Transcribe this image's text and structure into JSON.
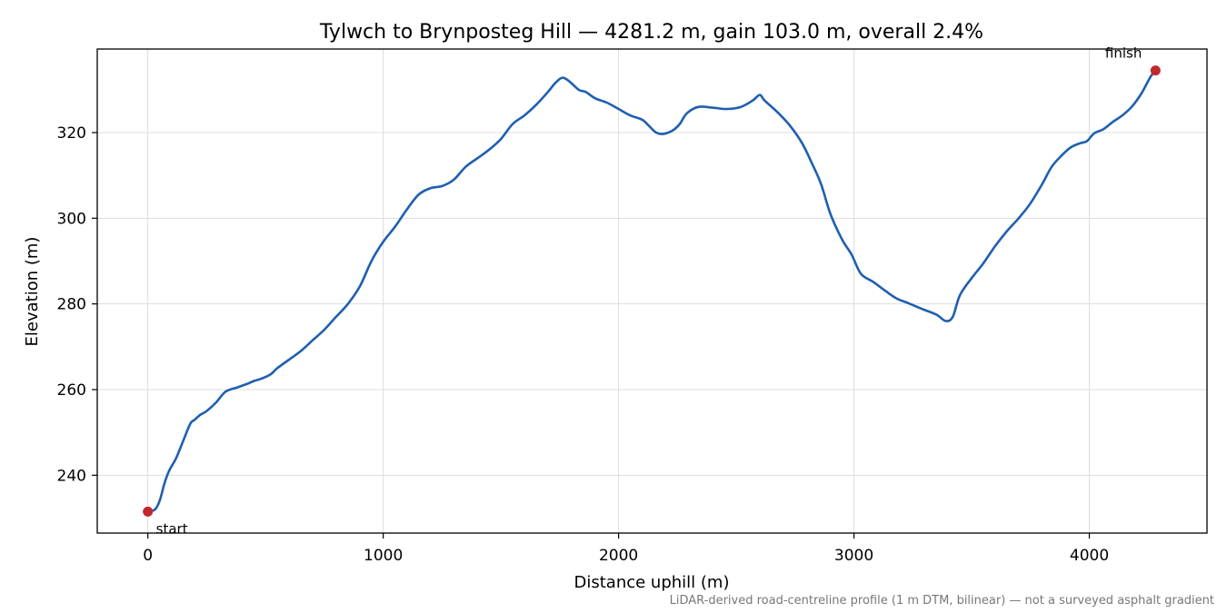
{
  "chart_data": {
    "type": "line",
    "title": "Tylwch to Brynposteg Hill — 4281.2 m, gain 103.0 m, overall 2.4%",
    "xlabel": "Distance uphill (m)",
    "ylabel": "Elevation (m)",
    "xlim": [
      -215,
      4500
    ],
    "ylim": [
      226.5,
      339.5
    ],
    "x_ticks": [
      0,
      1000,
      2000,
      3000,
      4000
    ],
    "y_ticks": [
      240,
      260,
      280,
      300,
      320
    ],
    "grid": true,
    "series": [
      {
        "color": "#1f5fb0",
        "points": [
          [
            0,
            231.5
          ],
          [
            30,
            232
          ],
          [
            50,
            234
          ],
          [
            70,
            238
          ],
          [
            90,
            241
          ],
          [
            120,
            244
          ],
          [
            150,
            248
          ],
          [
            180,
            252
          ],
          [
            200,
            253
          ],
          [
            220,
            254
          ],
          [
            250,
            255
          ],
          [
            290,
            257
          ],
          [
            330,
            259.5
          ],
          [
            380,
            260.5
          ],
          [
            420,
            261.3
          ],
          [
            450,
            262
          ],
          [
            480,
            262.5
          ],
          [
            520,
            263.5
          ],
          [
            550,
            265
          ],
          [
            600,
            267
          ],
          [
            650,
            269
          ],
          [
            700,
            271.5
          ],
          [
            750,
            274
          ],
          [
            800,
            277
          ],
          [
            850,
            280
          ],
          [
            900,
            284
          ],
          [
            950,
            290
          ],
          [
            1000,
            294.5
          ],
          [
            1050,
            298
          ],
          [
            1100,
            302
          ],
          [
            1150,
            305.5
          ],
          [
            1200,
            307
          ],
          [
            1250,
            307.5
          ],
          [
            1300,
            309
          ],
          [
            1350,
            312
          ],
          [
            1400,
            314
          ],
          [
            1450,
            316
          ],
          [
            1500,
            318.5
          ],
          [
            1550,
            322
          ],
          [
            1600,
            324
          ],
          [
            1650,
            326.5
          ],
          [
            1700,
            329.5
          ],
          [
            1730,
            331.5
          ],
          [
            1760,
            332.8
          ],
          [
            1790,
            332
          ],
          [
            1830,
            330
          ],
          [
            1860,
            329.5
          ],
          [
            1900,
            328
          ],
          [
            1950,
            327
          ],
          [
            2000,
            325.5
          ],
          [
            2050,
            324
          ],
          [
            2100,
            323
          ],
          [
            2130,
            321.5
          ],
          [
            2160,
            320
          ],
          [
            2190,
            319.7
          ],
          [
            2230,
            320.5
          ],
          [
            2260,
            322
          ],
          [
            2290,
            324.5
          ],
          [
            2340,
            326
          ],
          [
            2400,
            325.8
          ],
          [
            2460,
            325.5
          ],
          [
            2520,
            326
          ],
          [
            2570,
            327.5
          ],
          [
            2600,
            328.8
          ],
          [
            2620,
            327.5
          ],
          [
            2680,
            324.5
          ],
          [
            2730,
            321.5
          ],
          [
            2780,
            317.5
          ],
          [
            2820,
            313
          ],
          [
            2860,
            308
          ],
          [
            2900,
            301
          ],
          [
            2950,
            295
          ],
          [
            2990,
            291.5
          ],
          [
            3030,
            287
          ],
          [
            3080,
            285.2
          ],
          [
            3130,
            283.2
          ],
          [
            3180,
            281.3
          ],
          [
            3230,
            280.2
          ],
          [
            3290,
            278.8
          ],
          [
            3350,
            277.5
          ],
          [
            3390,
            276
          ],
          [
            3420,
            277
          ],
          [
            3450,
            282
          ],
          [
            3500,
            286
          ],
          [
            3550,
            289.5
          ],
          [
            3600,
            293.5
          ],
          [
            3650,
            297
          ],
          [
            3700,
            300
          ],
          [
            3750,
            303.5
          ],
          [
            3800,
            308
          ],
          [
            3840,
            312
          ],
          [
            3880,
            314.5
          ],
          [
            3920,
            316.5
          ],
          [
            3960,
            317.5
          ],
          [
            3990,
            318
          ],
          [
            4020,
            319.8
          ],
          [
            4060,
            320.8
          ],
          [
            4100,
            322.5
          ],
          [
            4140,
            324
          ],
          [
            4180,
            326
          ],
          [
            4220,
            329
          ],
          [
            4260,
            333
          ],
          [
            4281,
            334.5
          ]
        ]
      }
    ],
    "markers": [
      {
        "x": 0,
        "y": 231.5,
        "label": "start",
        "color": "#c1272d"
      },
      {
        "x": 4281.2,
        "y": 334.5,
        "label": "finish",
        "color": "#c1272d"
      }
    ],
    "footnote": "LiDAR-derived road-centreline profile (1 m DTM, bilinear) — not a surveyed asphalt gradient"
  }
}
